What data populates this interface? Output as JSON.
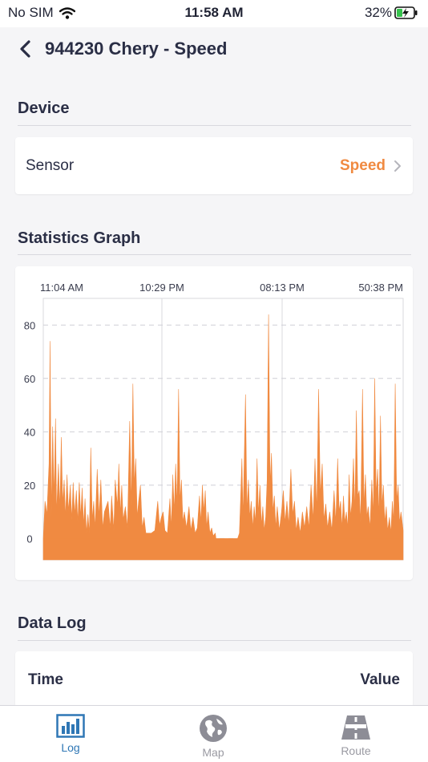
{
  "status": {
    "carrier": "No SIM",
    "time": "11:58 AM",
    "battery": "32%"
  },
  "nav": {
    "title": "944230 Chery - Speed",
    "back_icon": "chevron-left-icon"
  },
  "device": {
    "heading": "Device",
    "sensor_label": "Sensor",
    "sensor_value": "Speed"
  },
  "stats": {
    "heading": "Statistics Graph"
  },
  "log": {
    "heading": "Data Log",
    "col_time": "Time",
    "col_value": "Value"
  },
  "tabs": [
    {
      "label": "Log",
      "icon": "bar-chart-icon",
      "active": true
    },
    {
      "label": "Map",
      "icon": "globe-icon",
      "active": false
    },
    {
      "label": "Route",
      "icon": "road-icon",
      "active": false
    }
  ],
  "colors": {
    "accent": "#f08a41",
    "tab_active": "#2f77b5",
    "tab_inactive": "#9a9aa2",
    "title": "#2a2e45"
  },
  "chart_data": {
    "type": "area",
    "x_tick_labels": [
      "11:04 AM",
      "10:29 PM",
      "08:13 PM",
      "50:38 PM"
    ],
    "yticks": [
      0,
      20,
      40,
      60,
      80
    ],
    "ylim": [
      -8,
      90
    ],
    "grid": true,
    "series": [
      {
        "peaks": [
          [
            0.0,
            0
          ],
          [
            0.005,
            14
          ],
          [
            0.01,
            9
          ],
          [
            0.016,
            28
          ],
          [
            0.019,
            74
          ],
          [
            0.022,
            8
          ],
          [
            0.026,
            42
          ],
          [
            0.03,
            15
          ],
          [
            0.034,
            45
          ],
          [
            0.037,
            9
          ],
          [
            0.042,
            28
          ],
          [
            0.046,
            11
          ],
          [
            0.05,
            38
          ],
          [
            0.054,
            13
          ],
          [
            0.058,
            22
          ],
          [
            0.062,
            8
          ],
          [
            0.066,
            24
          ],
          [
            0.07,
            10
          ],
          [
            0.075,
            20
          ],
          [
            0.079,
            7
          ],
          [
            0.083,
            21
          ],
          [
            0.087,
            9
          ],
          [
            0.092,
            18
          ],
          [
            0.096,
            6
          ],
          [
            0.1,
            21
          ],
          [
            0.104,
            8
          ],
          [
            0.108,
            19
          ],
          [
            0.112,
            5
          ],
          [
            0.116,
            15
          ],
          [
            0.12,
            2
          ],
          [
            0.124,
            9
          ],
          [
            0.128,
            2
          ],
          [
            0.132,
            34
          ],
          [
            0.136,
            7
          ],
          [
            0.14,
            14
          ],
          [
            0.144,
            4
          ],
          [
            0.15,
            26
          ],
          [
            0.155,
            8
          ],
          [
            0.16,
            22
          ],
          [
            0.165,
            4
          ],
          [
            0.17,
            10
          ],
          [
            0.18,
            14
          ],
          [
            0.186,
            4
          ],
          [
            0.19,
            16
          ],
          [
            0.196,
            3
          ],
          [
            0.2,
            22
          ],
          [
            0.206,
            12
          ],
          [
            0.21,
            28
          ],
          [
            0.214,
            9
          ],
          [
            0.218,
            20
          ],
          [
            0.222,
            7
          ],
          [
            0.228,
            12
          ],
          [
            0.234,
            4
          ],
          [
            0.24,
            44
          ],
          [
            0.245,
            12
          ],
          [
            0.249,
            58
          ],
          [
            0.253,
            20
          ],
          [
            0.257,
            30
          ],
          [
            0.261,
            8
          ],
          [
            0.265,
            14
          ],
          [
            0.27,
            20
          ],
          [
            0.275,
            4
          ],
          [
            0.28,
            8
          ],
          [
            0.285,
            2
          ],
          [
            0.295,
            2
          ],
          [
            0.3,
            2
          ],
          [
            0.31,
            3
          ],
          [
            0.318,
            14
          ],
          [
            0.323,
            5
          ],
          [
            0.328,
            8
          ],
          [
            0.333,
            10
          ],
          [
            0.338,
            3
          ],
          [
            0.345,
            2
          ],
          [
            0.352,
            15
          ],
          [
            0.356,
            4
          ],
          [
            0.36,
            24
          ],
          [
            0.364,
            10
          ],
          [
            0.368,
            28
          ],
          [
            0.372,
            12
          ],
          [
            0.376,
            56
          ],
          [
            0.38,
            14
          ],
          [
            0.384,
            22
          ],
          [
            0.388,
            6
          ],
          [
            0.392,
            10
          ],
          [
            0.398,
            4
          ],
          [
            0.405,
            12
          ],
          [
            0.41,
            3
          ],
          [
            0.416,
            8
          ],
          [
            0.422,
            2
          ],
          [
            0.428,
            4
          ],
          [
            0.434,
            16
          ],
          [
            0.438,
            6
          ],
          [
            0.442,
            20
          ],
          [
            0.446,
            10
          ],
          [
            0.45,
            18
          ],
          [
            0.454,
            4
          ],
          [
            0.458,
            10
          ],
          [
            0.463,
            2
          ],
          [
            0.468,
            4
          ],
          [
            0.472,
            1
          ],
          [
            0.478,
            2
          ],
          [
            0.48,
            0
          ],
          [
            0.5,
            0
          ],
          [
            0.53,
            0
          ],
          [
            0.54,
            0
          ],
          [
            0.545,
            2
          ],
          [
            0.548,
            14
          ],
          [
            0.552,
            30
          ],
          [
            0.555,
            8
          ],
          [
            0.558,
            26
          ],
          [
            0.562,
            54
          ],
          [
            0.566,
            10
          ],
          [
            0.57,
            22
          ],
          [
            0.574,
            8
          ],
          [
            0.578,
            14
          ],
          [
            0.582,
            4
          ],
          [
            0.586,
            12
          ],
          [
            0.59,
            6
          ],
          [
            0.594,
            30
          ],
          [
            0.598,
            9
          ],
          [
            0.602,
            20
          ],
          [
            0.606,
            5
          ],
          [
            0.61,
            12
          ],
          [
            0.614,
            3
          ],
          [
            0.618,
            8
          ],
          [
            0.622,
            22
          ],
          [
            0.626,
            84
          ],
          [
            0.63,
            20
          ],
          [
            0.634,
            32
          ],
          [
            0.638,
            10
          ],
          [
            0.642,
            16
          ],
          [
            0.646,
            4
          ],
          [
            0.65,
            12
          ],
          [
            0.656,
            3
          ],
          [
            0.662,
            10
          ],
          [
            0.667,
            18
          ],
          [
            0.672,
            6
          ],
          [
            0.677,
            14
          ],
          [
            0.682,
            5
          ],
          [
            0.688,
            26
          ],
          [
            0.693,
            9
          ],
          [
            0.698,
            14
          ],
          [
            0.703,
            3
          ],
          [
            0.708,
            8
          ],
          [
            0.714,
            2
          ],
          [
            0.72,
            10
          ],
          [
            0.726,
            4
          ],
          [
            0.732,
            12
          ],
          [
            0.738,
            4
          ],
          [
            0.744,
            20
          ],
          [
            0.75,
            7
          ],
          [
            0.755,
            30
          ],
          [
            0.76,
            10
          ],
          [
            0.765,
            56
          ],
          [
            0.77,
            16
          ],
          [
            0.775,
            28
          ],
          [
            0.78,
            7
          ],
          [
            0.785,
            13
          ],
          [
            0.79,
            4
          ],
          [
            0.796,
            10
          ],
          [
            0.802,
            3
          ],
          [
            0.808,
            18
          ],
          [
            0.813,
            6
          ],
          [
            0.818,
            30
          ],
          [
            0.822,
            10
          ],
          [
            0.826,
            14
          ],
          [
            0.83,
            4
          ],
          [
            0.834,
            16
          ],
          [
            0.838,
            6
          ],
          [
            0.842,
            10
          ],
          [
            0.846,
            4
          ],
          [
            0.85,
            24
          ],
          [
            0.854,
            8
          ],
          [
            0.858,
            14
          ],
          [
            0.862,
            30
          ],
          [
            0.866,
            10
          ],
          [
            0.87,
            48
          ],
          [
            0.874,
            16
          ],
          [
            0.878,
            18
          ],
          [
            0.882,
            6
          ],
          [
            0.887,
            56
          ],
          [
            0.891,
            12
          ],
          [
            0.895,
            24
          ],
          [
            0.899,
            8
          ],
          [
            0.903,
            12
          ],
          [
            0.908,
            4
          ],
          [
            0.913,
            22
          ],
          [
            0.917,
            8
          ],
          [
            0.921,
            60
          ],
          [
            0.925,
            16
          ],
          [
            0.929,
            26
          ],
          [
            0.933,
            8
          ],
          [
            0.937,
            46
          ],
          [
            0.941,
            12
          ],
          [
            0.945,
            20
          ],
          [
            0.949,
            6
          ],
          [
            0.953,
            12
          ],
          [
            0.957,
            3
          ],
          [
            0.962,
            8
          ],
          [
            0.966,
            2
          ],
          [
            0.97,
            14
          ],
          [
            0.974,
            6
          ],
          [
            0.978,
            58
          ],
          [
            0.982,
            14
          ],
          [
            0.986,
            20
          ],
          [
            0.99,
            6
          ],
          [
            0.994,
            10
          ],
          [
            1.0,
            3
          ]
        ]
      }
    ]
  }
}
